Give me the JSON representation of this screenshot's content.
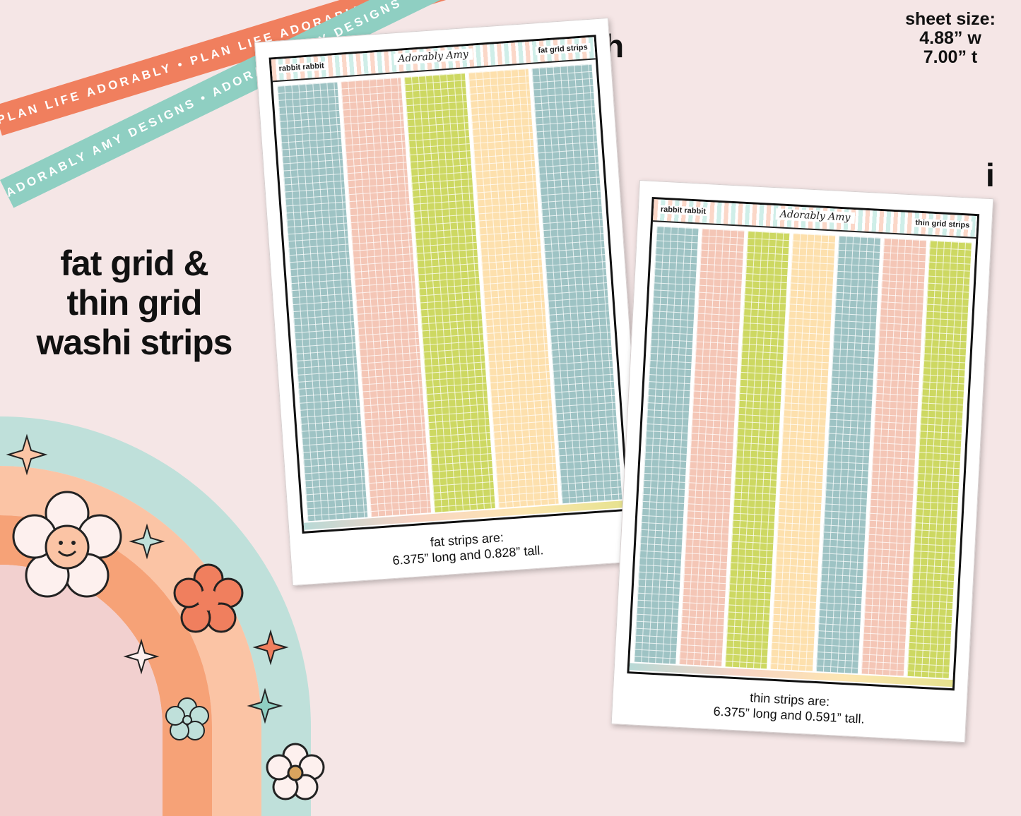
{
  "ribbons": {
    "orange": "PLAN LIFE ADORABLY • PLAN LIFE ADORABLY • PLAN LIFE ADORABLY",
    "mint": "ADORABLY AMY DESIGNS • ADORABLY AMY DESIGNS • ADORABLY AMY DESIGNS"
  },
  "headline": {
    "line1": "fat grid &",
    "line2": "thin grid",
    "line3": "washi strips"
  },
  "sheet_size": {
    "label": "sheet size:",
    "width": "4.88” w",
    "height": "7.00” t"
  },
  "sheets": [
    {
      "letter": "h",
      "theme": "rabbit rabbit",
      "logo": "Adorably Amy",
      "type_label": "fat grid strips",
      "strip_colors": [
        "#9ec3c4",
        "#f4c6b6",
        "#cdd862",
        "#fde0ad",
        "#9ec3c4"
      ],
      "caption_line1": "fat strips are:",
      "caption_line2": "6.375” long and 0.828” tall."
    },
    {
      "letter": "i",
      "theme": "rabbit rabbit",
      "logo": "Adorably Amy",
      "type_label": "thin grid strips",
      "strip_colors": [
        "#9ec3c4",
        "#f4c6b6",
        "#cdd862",
        "#fde0ad",
        "#9ec3c4",
        "#f4c6b6",
        "#cdd862"
      ],
      "caption_line1": "thin strips are:",
      "caption_line2": "6.375” long and 0.591” tall."
    }
  ],
  "colors": {
    "background": "#f5e6e6",
    "orange": "#f07f5e",
    "mint": "#8fcfc2",
    "peach": "#fbc4a5",
    "pink": "#f2d0cf"
  }
}
